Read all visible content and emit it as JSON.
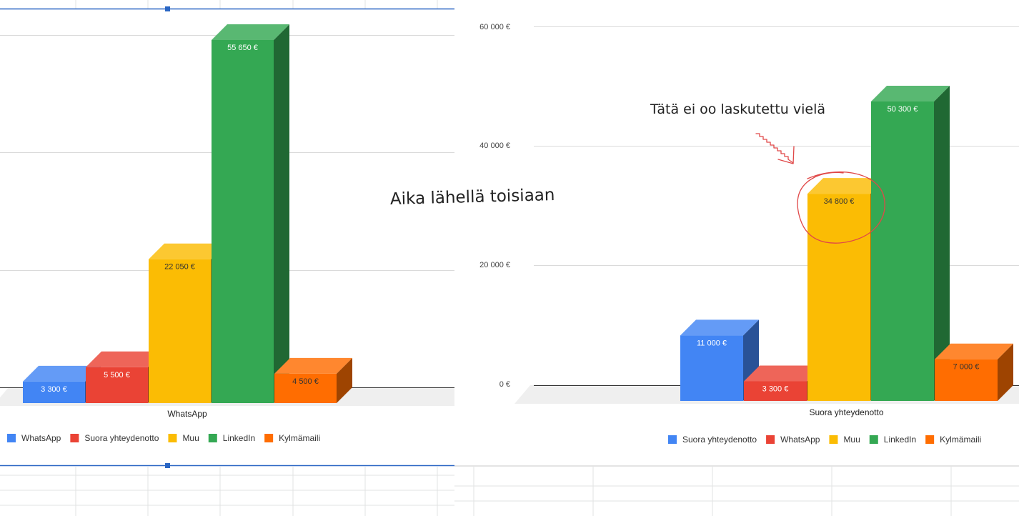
{
  "chart_data": [
    {
      "type": "bar",
      "title": "",
      "category": "WhatsApp",
      "series": [
        {
          "name": "WhatsApp",
          "value": 3300,
          "label": "3 300 €",
          "color": "#4285F4"
        },
        {
          "name": "Suora yhteydenotto",
          "value": 5500,
          "label": "5 500 €",
          "color": "#EA4335"
        },
        {
          "name": "Muu",
          "value": 22050,
          "label": "22 050 €",
          "color": "#FBBC04"
        },
        {
          "name": "LinkedIn",
          "value": 55650,
          "label": "55 650 €",
          "color": "#34A853"
        },
        {
          "name": "Kylmämaili",
          "value": 4500,
          "label": "4 500 €",
          "color": "#FF6D01"
        }
      ],
      "ylim": [
        0,
        60000
      ],
      "grid": true,
      "legend": "bottom"
    },
    {
      "type": "bar",
      "title": "",
      "category": "Suora yhteydenotto",
      "yticks": [
        "0 €",
        "20 000 €",
        "40 000 €",
        "60 000 €"
      ],
      "series": [
        {
          "name": "Suora yhteydenotto",
          "value": 11000,
          "label": "11 000 €",
          "color": "#4285F4"
        },
        {
          "name": "WhatsApp",
          "value": 3300,
          "label": "3 300 €",
          "color": "#EA4335"
        },
        {
          "name": "Muu",
          "value": 34800,
          "label": "34 800 €",
          "color": "#FBBC04"
        },
        {
          "name": "LinkedIn",
          "value": 50300,
          "label": "50 300 €",
          "color": "#34A853"
        },
        {
          "name": "Kylmämaili",
          "value": 7000,
          "label": "7 000 €",
          "color": "#FF6D01"
        }
      ],
      "ylim": [
        0,
        60000
      ],
      "grid": true,
      "legend": "bottom"
    }
  ],
  "annotations": {
    "close_note": "Aika lähellä toisiaan",
    "unbilled_note": "Tätä ei oo laskutettu vielä"
  }
}
